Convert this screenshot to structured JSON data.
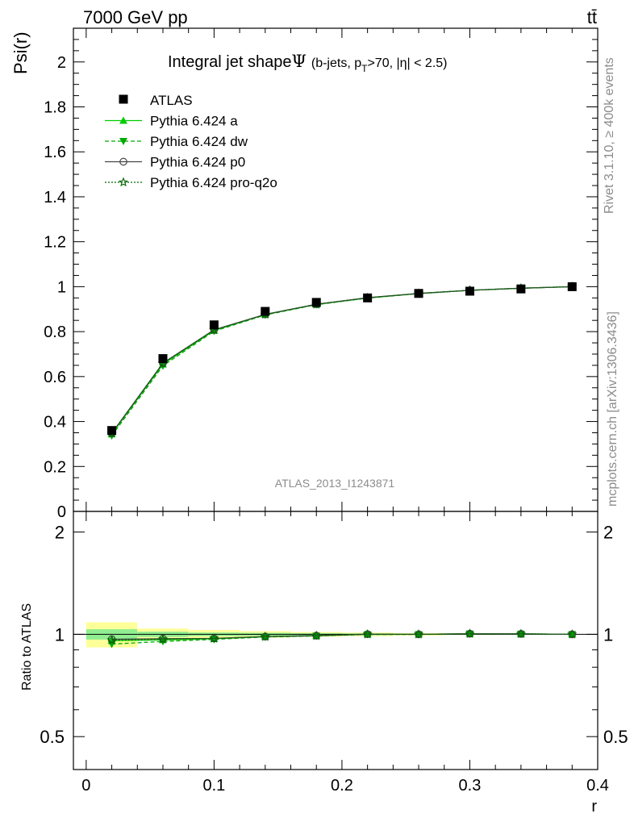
{
  "header": {
    "left": "7000 GeV pp",
    "right": "tt̄"
  },
  "side_labels": {
    "rivet": "Rivet 3.1.10, ≥ 400k events",
    "mcplots": "mcplots.cern.ch [arXiv:1306.3436]"
  },
  "chart_data": {
    "type": "line",
    "title": "Integral jet shape",
    "title_symbol": "Ψ",
    "subtitle_parts": {
      "pre": "(b-jets, p",
      "sub": "T",
      "post": ">70, |η| < 2.5)"
    },
    "analysis_id": "ATLAS_2013_I1243871",
    "xlabel": "r",
    "ylabel": "Psi(r)",
    "ratio_ylabel": "Ratio to ATLAS",
    "xlim": [
      -0.01,
      0.4
    ],
    "ylim": [
      0,
      2.15
    ],
    "ratio_ylim": [
      0.4,
      2.3
    ],
    "x_ticks": [
      "0",
      "0.1",
      "0.2",
      "0.3",
      "0.4"
    ],
    "y_ticks": [
      "0",
      "0.2",
      "0.4",
      "0.6",
      "0.8",
      "1",
      "1.2",
      "1.4",
      "1.6",
      "1.8",
      "2"
    ],
    "ratio_ticks": [
      "0.5",
      "1",
      "2"
    ],
    "x": [
      0.02,
      0.06,
      0.1,
      0.14,
      0.18,
      0.22,
      0.26,
      0.3,
      0.34,
      0.38
    ],
    "data": {
      "name": "ATLAS",
      "values": [
        0.36,
        0.68,
        0.83,
        0.89,
        0.93,
        0.95,
        0.97,
        0.98,
        0.99,
        1.0
      ],
      "color": "#000000"
    },
    "series": [
      {
        "name": "Pythia 6.424 a",
        "color": "#00cc00",
        "marker": "triangle-up",
        "dash": "",
        "values": [
          0.345,
          0.655,
          0.805,
          0.876,
          0.921,
          0.95,
          0.97,
          0.984,
          0.993,
          1.0
        ],
        "ratio": [
          0.958,
          0.963,
          0.97,
          0.984,
          0.99,
          1.0,
          1.0,
          1.004,
          1.003,
          1.0
        ]
      },
      {
        "name": "Pythia 6.424 dw",
        "color": "#00aa00",
        "marker": "triangle-down",
        "dash": "5,3",
        "values": [
          0.337,
          0.648,
          0.802,
          0.874,
          0.92,
          0.949,
          0.969,
          0.984,
          0.993,
          1.0
        ],
        "ratio": [
          0.936,
          0.953,
          0.966,
          0.982,
          0.989,
          0.999,
          0.999,
          1.004,
          1.003,
          1.0
        ]
      },
      {
        "name": "Pythia 6.424 p0",
        "color": "#444444",
        "marker": "circle-open",
        "dash": "",
        "values": [
          0.348,
          0.66,
          0.808,
          0.877,
          0.922,
          0.951,
          0.97,
          0.984,
          0.993,
          1.0
        ],
        "ratio": [
          0.967,
          0.971,
          0.973,
          0.985,
          0.991,
          1.001,
          1.0,
          1.004,
          1.003,
          1.0
        ]
      },
      {
        "name": "Pythia 6.424 pro-q2o",
        "color": "#006600",
        "marker": "star-open",
        "dash": "2,2",
        "values": [
          0.346,
          0.658,
          0.807,
          0.876,
          0.921,
          0.95,
          0.97,
          0.984,
          0.993,
          1.0
        ],
        "ratio": [
          0.961,
          0.968,
          0.972,
          0.984,
          0.99,
          1.0,
          1.0,
          1.004,
          1.003,
          1.0
        ]
      }
    ],
    "bands": {
      "x_edges": [
        0.0,
        0.04,
        0.08,
        0.12,
        0.16,
        0.2,
        0.24,
        0.28,
        0.32,
        0.36,
        0.4
      ],
      "green_half": [
        0.035,
        0.018,
        0.012,
        0.01,
        0.008,
        0.006,
        0.004,
        0.002,
        0.0,
        0.0
      ],
      "yellow_half": [
        0.085,
        0.04,
        0.03,
        0.022,
        0.016,
        0.012,
        0.008,
        0.004,
        0.0,
        0.0
      ]
    },
    "band_colors": {
      "green": "#90ee90",
      "yellow": "#ffff99"
    },
    "legend_position": "top-left",
    "grid": false
  }
}
